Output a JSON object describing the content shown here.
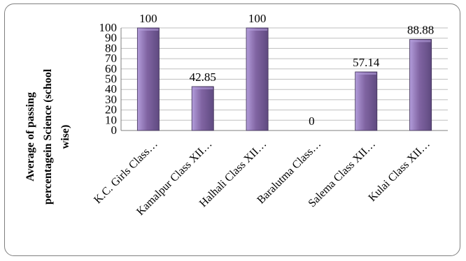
{
  "chart_data": {
    "type": "bar",
    "title": "",
    "xlabel": "",
    "ylabel_lines": [
      "Average of passing",
      "percentagein Science  (school",
      "wise)"
    ],
    "ylim": [
      0,
      100
    ],
    "y_ticks": [
      0,
      10,
      20,
      30,
      40,
      50,
      60,
      70,
      80,
      90,
      100
    ],
    "grid": true,
    "legend": "none",
    "categories": [
      "K.C. Girls Class…",
      "Kamalpur Class XII…",
      "Halhali Class XII…",
      "Baralutma Class…",
      "Salema Class XII…",
      "Kulai Class XII…"
    ],
    "values": [
      100,
      42.85,
      100,
      0,
      57.14,
      88.88
    ],
    "data_labels": [
      "100",
      "42.85",
      "100",
      "0",
      "57.14",
      "88.88"
    ],
    "colors": {
      "bar_fill": "#8064a2",
      "bar_light": "#b39ddb",
      "bar_dark": "#5f4a80",
      "bar_outline": "#3f3157",
      "gridline": "#bfbfbf"
    }
  }
}
